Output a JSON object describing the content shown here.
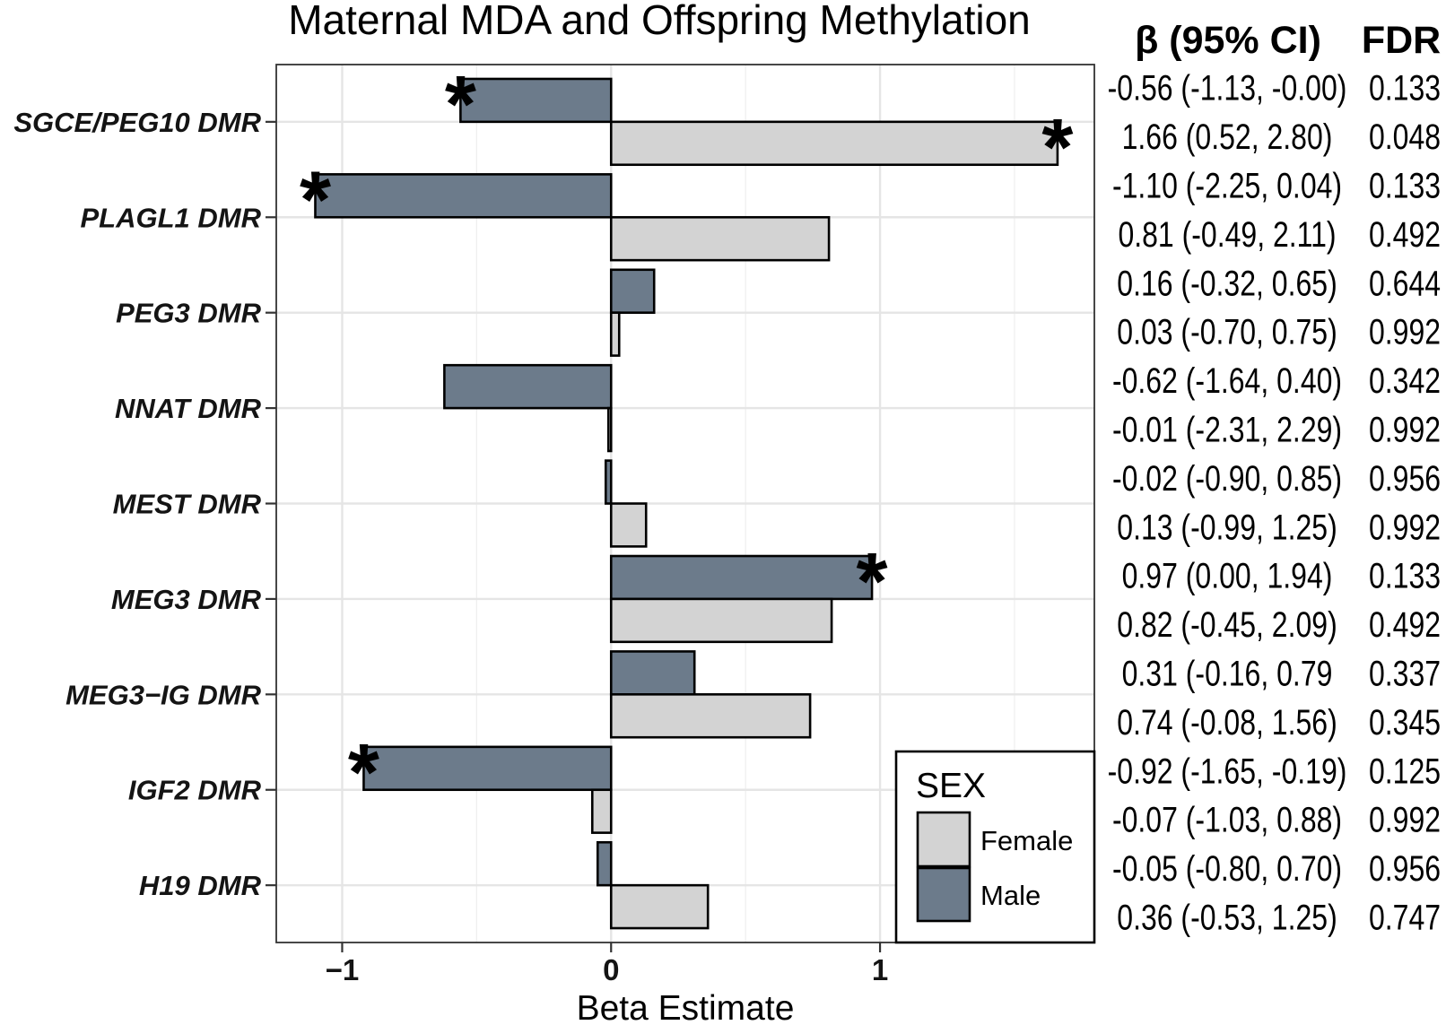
{
  "chart_data": {
    "type": "bar",
    "title": "Maternal MDA and Offspring Methylation",
    "xlabel": "Beta Estimate",
    "xlim": [
      -1.245,
      1.797
    ],
    "xticks": [
      -1,
      0,
      1
    ],
    "xtick_labels": [
      "−1",
      "0",
      "1"
    ],
    "xminor_ticks": [
      -0.5,
      0.5,
      1.5
    ],
    "grid": true,
    "categories": [
      "SGCE/PEG10 DMR",
      "PLAGL1 DMR",
      "PEG3 DMR",
      "NNAT DMR",
      "MEST DMR",
      "MEG3 DMR",
      "MEG3−IG DMR",
      "IGF2 DMR",
      "H19 DMR"
    ],
    "series": [
      {
        "name": "Male",
        "color": "#6c7b8b",
        "values": [
          -0.56,
          -1.1,
          0.16,
          -0.62,
          -0.02,
          0.97,
          0.31,
          -0.92,
          -0.05
        ],
        "significant": [
          true,
          true,
          false,
          false,
          false,
          true,
          false,
          true,
          false
        ]
      },
      {
        "name": "Female",
        "color": "#d3d3d3",
        "values": [
          1.66,
          0.81,
          0.03,
          -0.01,
          0.13,
          0.82,
          0.74,
          -0.07,
          0.36
        ],
        "significant": [
          true,
          false,
          false,
          false,
          false,
          false,
          false,
          false,
          false
        ]
      }
    ],
    "significance_marker": "*",
    "legend": {
      "title": "SEX",
      "position": "bottom-right"
    },
    "table": {
      "headers": [
        "β (95% CI)",
        "FDR"
      ],
      "rows": [
        [
          "-0.56 (-1.13, -0.00)",
          "0.133"
        ],
        [
          "1.66 (0.52, 2.80)",
          "0.048"
        ],
        [
          "-1.10 (-2.25, 0.04)",
          "0.133"
        ],
        [
          "0.81 (-0.49, 2.11)",
          "0.492"
        ],
        [
          "0.16 (-0.32, 0.65)",
          "0.644"
        ],
        [
          "0.03 (-0.70, 0.75)",
          "0.992"
        ],
        [
          "-0.62 (-1.64, 0.40)",
          "0.342"
        ],
        [
          "-0.01 (-2.31, 2.29)",
          "0.992"
        ],
        [
          "-0.02 (-0.90, 0.85)",
          "0.956"
        ],
        [
          "0.13 (-0.99, 1.25)",
          "0.992"
        ],
        [
          "0.97 (0.00, 1.94)",
          "0.133"
        ],
        [
          "0.82 (-0.45, 2.09)",
          "0.492"
        ],
        [
          "0.31 (-0.16, 0.79",
          "0.337"
        ],
        [
          "0.74 (-0.08, 1.56)",
          "0.345"
        ],
        [
          "-0.92 (-1.65, -0.19)",
          "0.125"
        ],
        [
          "-0.07 (-1.03, 0.88)",
          "0.992"
        ],
        [
          "-0.05 (-0.80, 0.70)",
          "0.956"
        ],
        [
          "0.36 (-0.53, 1.25)",
          "0.747"
        ]
      ]
    }
  }
}
